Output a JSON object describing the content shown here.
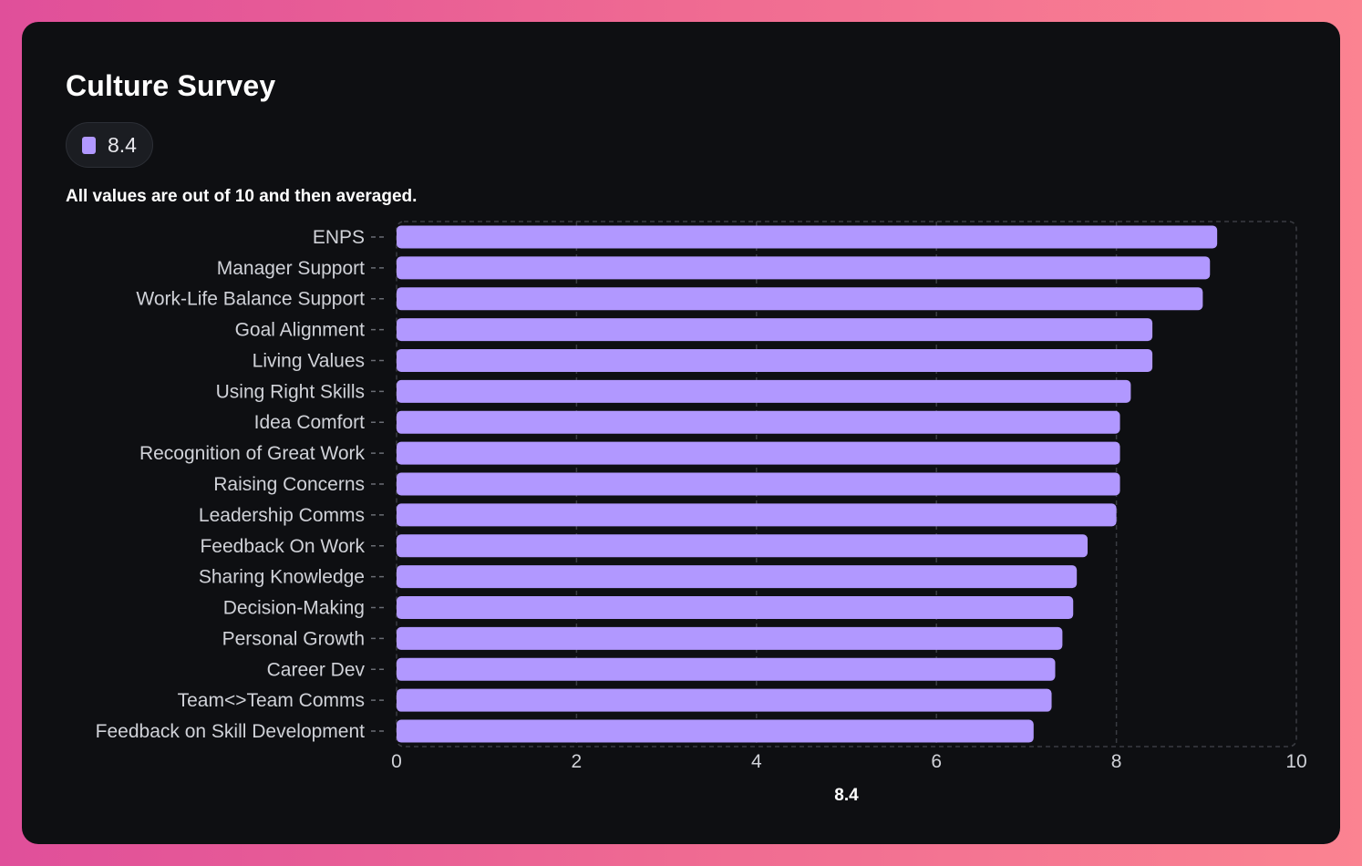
{
  "card": {
    "title": "Culture Survey",
    "subtitle": "All values are out of 10 and then averaged."
  },
  "legend": {
    "label": "8.4",
    "color": "#b198ff"
  },
  "colors": {
    "bar": "#b198ff",
    "grid": "#3a3c42",
    "text": "#d0d2d8",
    "axis_title": "#ffffff"
  },
  "chart_data": {
    "type": "bar",
    "orientation": "horizontal",
    "categories": [
      "ENPS",
      "Manager Support",
      "Work-Life Balance Support",
      "Goal Alignment",
      "Living Values",
      "Using Right Skills",
      "Idea Comfort",
      "Recognition of Great Work",
      "Raising Concerns",
      "Leadership Comms",
      "Feedback On Work",
      "Sharing Knowledge",
      "Decision-Making",
      "Personal Growth",
      "Career Dev",
      "Team<>Team Comms",
      "Feedback on Skill Development"
    ],
    "series": [
      {
        "name": "8.4",
        "values": [
          9.12,
          9.04,
          8.96,
          8.4,
          8.4,
          8.16,
          8.04,
          8.04,
          8.04,
          8.0,
          7.68,
          7.56,
          7.52,
          7.4,
          7.32,
          7.28,
          7.08
        ]
      }
    ],
    "xlim": [
      0,
      10
    ],
    "xticks": [
      "0",
      "2",
      "4",
      "6",
      "8",
      "10"
    ],
    "xlabel": "8.4",
    "ylabel": "",
    "grid": true,
    "legend": "top-left"
  }
}
